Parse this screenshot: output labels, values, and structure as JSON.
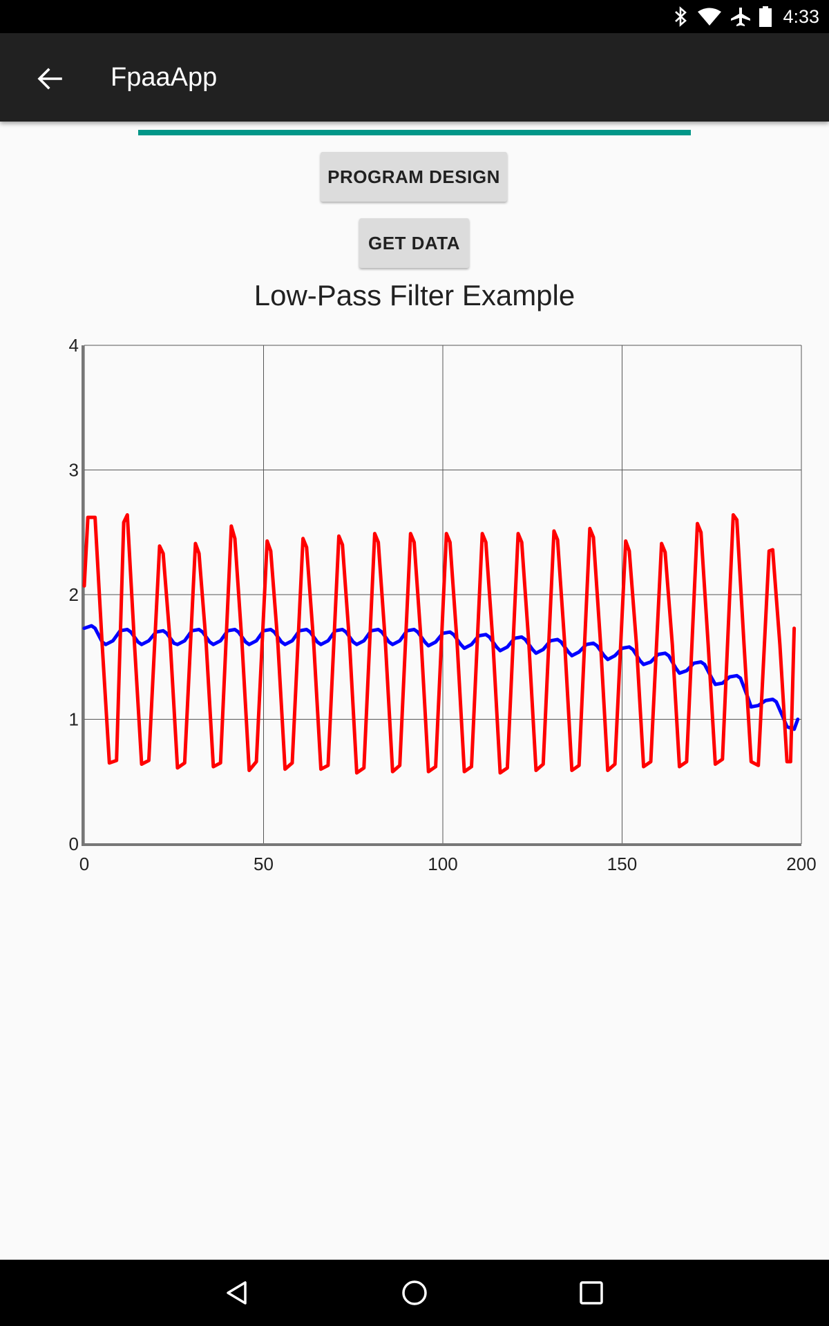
{
  "status_bar": {
    "time": "4:33",
    "icons": [
      "bluetooth-icon",
      "wifi-icon",
      "airplane-mode-icon",
      "battery-icon"
    ]
  },
  "app_bar": {
    "title": "FpaaApp",
    "back_icon": "arrow-back-icon"
  },
  "progress": {
    "value": 1.0,
    "color": "#009688"
  },
  "buttons": {
    "program_design": "PROGRAM DESIGN",
    "get_data": "GET DATA"
  },
  "chart_data": {
    "type": "line",
    "title": "Low-Pass Filter Example",
    "xlabel": "",
    "ylabel": "",
    "xlim": [
      0,
      200
    ],
    "ylim": [
      0,
      4
    ],
    "x_ticks": [
      0,
      50,
      100,
      150,
      200
    ],
    "y_ticks": [
      0,
      1,
      2,
      3,
      4
    ],
    "grid": true,
    "series": [
      {
        "color": "#ff0000",
        "x": [
          0,
          1,
          3,
          5,
          7,
          9,
          11,
          12,
          14,
          16,
          18,
          21,
          22,
          24,
          26,
          28,
          31,
          32,
          34,
          36,
          38,
          41,
          42,
          44,
          46,
          48,
          51,
          52,
          54,
          56,
          58,
          61,
          62,
          64,
          66,
          68,
          71,
          72,
          74,
          76,
          78,
          81,
          82,
          84,
          86,
          88,
          91,
          92,
          94,
          96,
          98,
          101,
          102,
          104,
          106,
          108,
          111,
          112,
          114,
          116,
          118,
          121,
          122,
          124,
          126,
          128,
          131,
          132,
          134,
          136,
          138,
          141,
          142,
          144,
          146,
          148,
          151,
          152,
          154,
          156,
          158,
          161,
          162,
          164,
          166,
          168,
          171,
          172,
          174,
          176,
          178,
          181,
          182,
          184,
          186,
          188,
          191,
          192,
          194,
          196,
          197,
          198
        ],
        "y": [
          2.07,
          2.62,
          2.62,
          1.6,
          0.65,
          0.67,
          2.58,
          2.64,
          1.6,
          0.64,
          0.67,
          2.39,
          2.33,
          1.6,
          0.61,
          0.65,
          2.41,
          2.33,
          1.6,
          0.62,
          0.65,
          2.55,
          2.45,
          1.6,
          0.59,
          0.66,
          2.43,
          2.35,
          1.6,
          0.6,
          0.65,
          2.45,
          2.38,
          1.6,
          0.6,
          0.63,
          2.47,
          2.4,
          1.6,
          0.57,
          0.61,
          2.49,
          2.42,
          1.6,
          0.58,
          0.63,
          2.49,
          2.42,
          1.6,
          0.58,
          0.62,
          2.49,
          2.42,
          1.6,
          0.58,
          0.62,
          2.49,
          2.42,
          1.6,
          0.57,
          0.61,
          2.49,
          2.42,
          1.6,
          0.59,
          0.64,
          2.51,
          2.44,
          1.6,
          0.59,
          0.63,
          2.53,
          2.46,
          1.6,
          0.59,
          0.64,
          2.43,
          2.35,
          1.6,
          0.62,
          0.66,
          2.41,
          2.34,
          1.6,
          0.62,
          0.66,
          2.57,
          2.5,
          1.6,
          0.64,
          0.68,
          2.64,
          2.6,
          1.6,
          0.66,
          0.63,
          2.35,
          2.36,
          1.6,
          0.66,
          0.66,
          1.73
        ]
      },
      {
        "color": "#0000ff",
        "x": [
          0,
          2,
          3,
          5,
          6,
          8,
          10,
          12,
          13,
          15,
          16,
          18,
          20,
          22,
          23,
          25,
          26,
          28,
          30,
          32,
          33,
          35,
          36,
          38,
          40,
          42,
          43,
          45,
          46,
          48,
          50,
          52,
          53,
          55,
          56,
          58,
          60,
          62,
          63,
          65,
          66,
          68,
          70,
          72,
          73,
          75,
          76,
          78,
          80,
          82,
          83,
          85,
          86,
          88,
          90,
          92,
          93,
          95,
          96,
          98,
          100,
          102,
          103,
          105,
          106,
          108,
          110,
          112,
          113,
          115,
          116,
          118,
          120,
          122,
          123,
          125,
          126,
          128,
          130,
          132,
          133,
          135,
          136,
          138,
          140,
          142,
          143,
          145,
          146,
          148,
          150,
          152,
          153,
          155,
          156,
          158,
          160,
          162,
          163,
          165,
          166,
          168,
          170,
          172,
          173,
          175,
          176,
          178,
          180,
          182,
          183,
          185,
          186,
          188,
          190,
          192,
          193,
          195,
          196,
          198,
          199
        ],
        "y": [
          1.73,
          1.75,
          1.73,
          1.62,
          1.6,
          1.63,
          1.71,
          1.72,
          1.7,
          1.62,
          1.6,
          1.63,
          1.7,
          1.71,
          1.69,
          1.61,
          1.6,
          1.63,
          1.71,
          1.72,
          1.7,
          1.62,
          1.6,
          1.63,
          1.71,
          1.72,
          1.7,
          1.62,
          1.6,
          1.63,
          1.71,
          1.72,
          1.7,
          1.62,
          1.6,
          1.63,
          1.71,
          1.72,
          1.7,
          1.62,
          1.6,
          1.63,
          1.71,
          1.72,
          1.7,
          1.62,
          1.6,
          1.63,
          1.71,
          1.72,
          1.7,
          1.62,
          1.6,
          1.63,
          1.71,
          1.72,
          1.7,
          1.62,
          1.59,
          1.62,
          1.69,
          1.7,
          1.68,
          1.6,
          1.57,
          1.6,
          1.67,
          1.68,
          1.66,
          1.58,
          1.55,
          1.58,
          1.65,
          1.66,
          1.64,
          1.56,
          1.53,
          1.56,
          1.63,
          1.64,
          1.62,
          1.54,
          1.51,
          1.54,
          1.6,
          1.61,
          1.59,
          1.51,
          1.48,
          1.51,
          1.57,
          1.58,
          1.56,
          1.47,
          1.44,
          1.46,
          1.52,
          1.53,
          1.51,
          1.41,
          1.37,
          1.39,
          1.45,
          1.46,
          1.44,
          1.33,
          1.28,
          1.29,
          1.34,
          1.35,
          1.33,
          1.18,
          1.1,
          1.11,
          1.15,
          1.16,
          1.14,
          1.01,
          0.94,
          0.92,
          1.0
        ]
      }
    ]
  },
  "nav_bar": {
    "icons": [
      "nav-back-icon",
      "nav-home-icon",
      "nav-recents-icon"
    ]
  }
}
